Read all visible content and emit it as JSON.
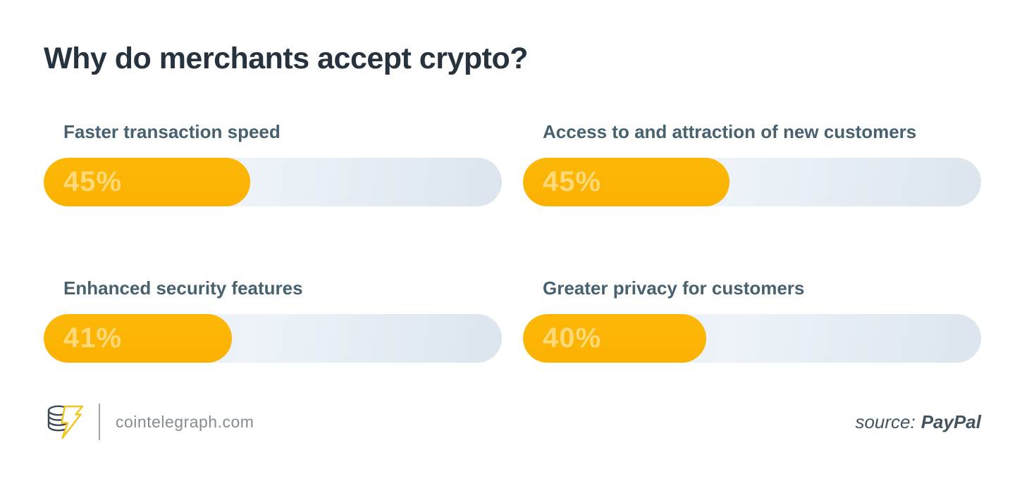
{
  "title": "Why do merchants accept crypto?",
  "chart_data": {
    "type": "bar",
    "orientation": "horizontal",
    "layout": "2x2-grid",
    "categories": [
      "Faster transaction speed",
      "Access to and attraction of new customers",
      "Enhanced security features",
      "Greater privacy for customers"
    ],
    "values": [
      45,
      45,
      41,
      40
    ],
    "value_labels": [
      "45%",
      "45%",
      "41%",
      "40%"
    ],
    "value_range": [
      0,
      100
    ],
    "title": "Why do merchants accept crypto?",
    "bar_color": "#FCB505",
    "track_color": "#E2EAF1",
    "value_text_color": "#FFD878",
    "label_color": "#47616E",
    "grid": false,
    "legend": false
  },
  "footer": {
    "site": "cointelegraph.com",
    "logo": "cointelegraph-coin-lightning-logo",
    "source_label": "source:",
    "source_value": "PayPal"
  },
  "colors": {
    "background": "#FFFFFF",
    "title": "#26333F",
    "accent": "#FCB505",
    "footer_text": "#858C92",
    "source_text": "#44545F"
  }
}
